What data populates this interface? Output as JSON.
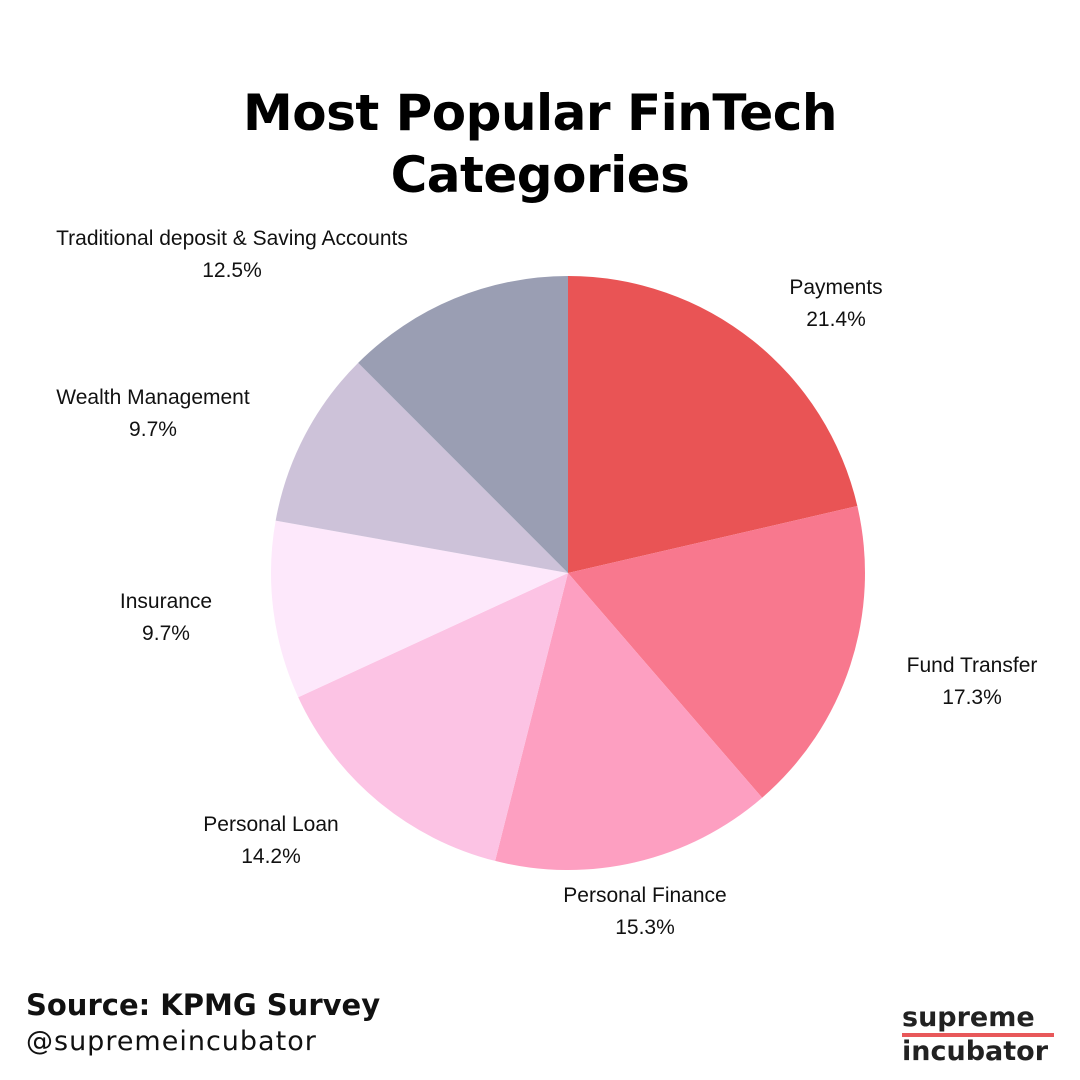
{
  "title": {
    "line1": "Most Popular FinTech",
    "line2": "Categories"
  },
  "chart_data": {
    "type": "pie",
    "title": "Most Popular FinTech Categories",
    "start_angle_deg": 0,
    "direction": "clockwise",
    "slices": [
      {
        "label": "Payments",
        "value": 21.4,
        "value_label": "21.4%",
        "color": "#e95455"
      },
      {
        "label": "Fund Transfer",
        "value": 17.3,
        "value_label": "17.3%",
        "color": "#f8788e"
      },
      {
        "label": "Personal Finance",
        "value": 15.3,
        "value_label": "15.3%",
        "color": "#fd9fc1"
      },
      {
        "label": "Personal Loan",
        "value": 14.2,
        "value_label": "14.2%",
        "color": "#fcc3e4"
      },
      {
        "label": "Insurance",
        "value": 9.7,
        "value_label": "9.7%",
        "color": "#fde8fb"
      },
      {
        "label": "Wealth Management",
        "value": 9.7,
        "value_label": "9.7%",
        "color": "#cdc2d9"
      },
      {
        "label": "Traditional deposit & Saving Accounts",
        "value": 12.5,
        "value_label": "12.5%",
        "color": "#9a9eb3"
      }
    ]
  },
  "footer": {
    "source": "Source: KPMG Survey",
    "handle": "@supremeincubator"
  },
  "brand": {
    "line1": "supreme",
    "line2": "incubator",
    "accent_color": "#e8585a"
  }
}
